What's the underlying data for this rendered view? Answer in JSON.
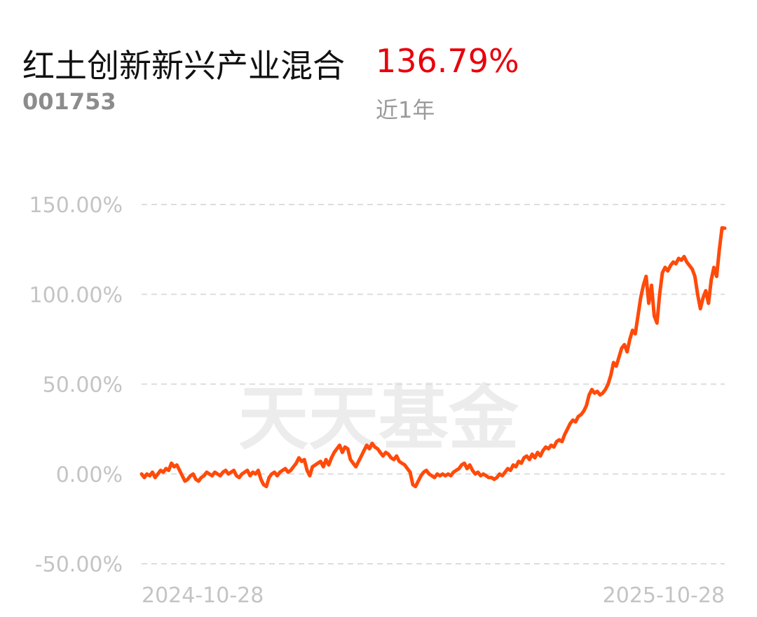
{
  "header": {
    "fund_name": "红土创新新兴产业混合",
    "fund_code": "001753",
    "period_return": "136.79%",
    "period_label": "近1年"
  },
  "watermark": "天天基金",
  "colors": {
    "line": "#ff4a0a",
    "return_text": "#e8000b",
    "grid": "#dddddd",
    "tick_text": "#c4c4c4"
  },
  "chart_data": {
    "type": "line",
    "title": "",
    "xlabel": "",
    "ylabel": "",
    "x_start": "2024-10-28",
    "x_end": "2025-10-28",
    "x_ticks": [
      "2024-10-28",
      "2025-10-28"
    ],
    "y_ticks": [
      "150.00%",
      "100.00%",
      "50.00%",
      "0.00%",
      "-50.00%"
    ],
    "ylim": [
      -50,
      150
    ],
    "grid": true,
    "series": [
      {
        "values": [
          0,
          -2,
          0,
          -1,
          1,
          -2,
          0,
          2,
          1,
          3,
          2,
          6,
          4,
          5,
          2,
          -1,
          -4,
          -3,
          -1,
          0,
          -3,
          -4,
          -2,
          -1,
          1,
          0,
          -1,
          1,
          0,
          -1,
          1,
          2,
          0,
          1,
          2,
          -1,
          -2,
          0,
          1,
          2,
          -1,
          1,
          0,
          2,
          -3,
          -6,
          -7,
          -2,
          0,
          1,
          -1,
          1,
          2,
          3,
          1,
          2,
          4,
          6,
          9,
          7,
          8,
          2,
          -1,
          4,
          5,
          6,
          7,
          4,
          8,
          5,
          9,
          12,
          14,
          16,
          12,
          15,
          14,
          8,
          6,
          4,
          7,
          10,
          13,
          16,
          14,
          17,
          15,
          14,
          12,
          10,
          12,
          11,
          9,
          8,
          10,
          7,
          6,
          5,
          3,
          1,
          -6,
          -7,
          -4,
          -1,
          1,
          2,
          0,
          -1,
          -2,
          0,
          -1,
          0,
          -1,
          0,
          -1,
          1,
          2,
          3,
          5,
          6,
          3,
          5,
          2,
          0,
          1,
          -1,
          0,
          -1,
          -2,
          -2,
          -3,
          -2,
          0,
          -1,
          1,
          3,
          2,
          5,
          4,
          7,
          6,
          9,
          10,
          8,
          11,
          9,
          12,
          10,
          13,
          15,
          14,
          16,
          15,
          18,
          19,
          18,
          22,
          25,
          28,
          30,
          29,
          32,
          33,
          35,
          38,
          44,
          47,
          45,
          46,
          44,
          45,
          47,
          50,
          55,
          62,
          60,
          65,
          70,
          72,
          68,
          75,
          80,
          78,
          88,
          98,
          105,
          110,
          95,
          105,
          88,
          84,
          100,
          112,
          115,
          113,
          116,
          118,
          117,
          120,
          119,
          121,
          118,
          116,
          114,
          110,
          100,
          92,
          98,
          102,
          95,
          108,
          115,
          110,
          125,
          137,
          136.79
        ]
      }
    ]
  }
}
